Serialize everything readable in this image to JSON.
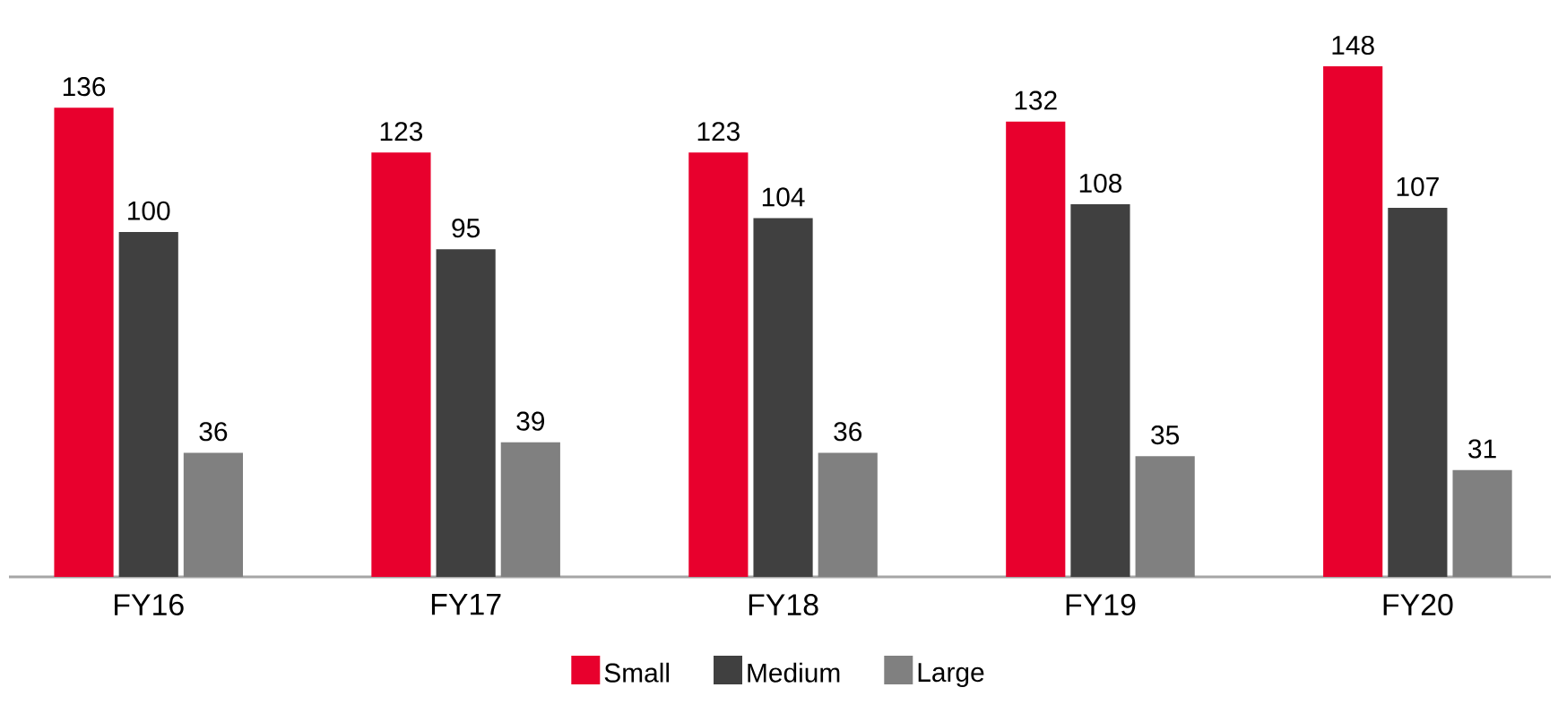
{
  "chart_data": {
    "type": "bar",
    "categories": [
      "FY16",
      "FY17",
      "FY18",
      "FY19",
      "FY20"
    ],
    "series": [
      {
        "name": "Small",
        "color": "#e8002d",
        "values": [
          136,
          123,
          123,
          132,
          148
        ]
      },
      {
        "name": "Medium",
        "color": "#404040",
        "values": [
          100,
          95,
          104,
          108,
          107
        ]
      },
      {
        "name": "Large",
        "color": "#808080",
        "values": [
          36,
          39,
          36,
          35,
          31
        ]
      }
    ],
    "data_labels": true,
    "legend": "bottom"
  }
}
